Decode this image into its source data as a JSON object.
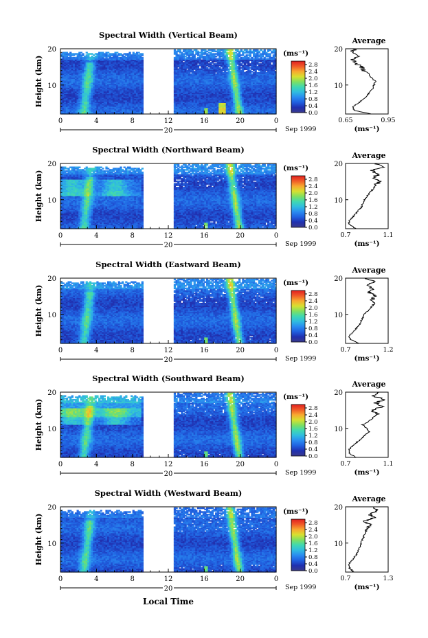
{
  "figure": {
    "xlabel": "Local Time",
    "time_ticks": [
      "0",
      "4",
      "8",
      "12",
      "16",
      "20",
      "0"
    ],
    "date_mark": "20",
    "date_label": "Sep 1999",
    "colorbar": {
      "unit_label": "(ms⁻¹)",
      "tick_labels": [
        "0.0",
        "0.4",
        "0.8",
        "1.2",
        "1.6",
        "2.0",
        "2.4",
        "2.8"
      ],
      "range": [
        0,
        3.0
      ],
      "colors": [
        "#3a3a8c",
        "#2030b0",
        "#2060e0",
        "#2a8cf0",
        "#30bce0",
        "#40d8b0",
        "#80e060",
        "#d8e030",
        "#f8a830",
        "#f05a28",
        "#e02020"
      ]
    },
    "avg_title": "Average",
    "avg_xlabel": "(ms⁻¹)",
    "avg_y_ticks": [
      "10",
      "20"
    ],
    "height_label": "Height (km)",
    "height_ticks": [
      "10",
      "20"
    ]
  },
  "chart_data": [
    {
      "type": "heatmap",
      "title": "Spectral Width (Vertical Beam)",
      "xlabel": "Local Time",
      "ylabel": "Height (km)",
      "xlim": [
        0,
        24
      ],
      "ylim": [
        2,
        20
      ],
      "data_gap_hours": [
        9.2,
        12.5
      ],
      "avg_profile": {
        "xlabel": "(ms⁻¹)",
        "xlim": [
          0.65,
          0.95
        ],
        "xticks": [
          "0.65",
          "0.95"
        ],
        "heights": [
          2,
          3,
          4,
          5,
          6,
          7,
          8,
          9,
          10,
          11,
          12,
          13,
          14,
          15,
          16,
          17,
          18,
          19,
          20
        ],
        "values": [
          0.83,
          0.71,
          0.7,
          0.74,
          0.77,
          0.8,
          0.82,
          0.84,
          0.85,
          0.86,
          0.83,
          0.82,
          0.78,
          0.76,
          0.72,
          0.7,
          0.74,
          0.69,
          0.72
        ]
      }
    },
    {
      "type": "heatmap",
      "title": "Spectral Width (Northward Beam)",
      "xlabel": "Local Time",
      "ylabel": "Height (km)",
      "xlim": [
        0,
        24
      ],
      "ylim": [
        2,
        20
      ],
      "data_gap_hours": [
        9.2,
        12.5
      ],
      "avg_profile": {
        "xlabel": "(ms⁻¹)",
        "xlim": [
          0.7,
          1.1
        ],
        "xticks": [
          "0.7",
          "1.1"
        ],
        "heights": [
          2,
          3,
          4,
          5,
          6,
          7,
          8,
          9,
          10,
          11,
          12,
          13,
          14,
          15,
          16,
          17,
          18,
          19,
          20
        ],
        "values": [
          0.8,
          0.74,
          0.73,
          0.76,
          0.79,
          0.82,
          0.85,
          0.86,
          0.88,
          0.9,
          0.93,
          0.96,
          0.98,
          1.02,
          0.96,
          1.0,
          0.95,
          1.05,
          0.98
        ]
      }
    },
    {
      "type": "heatmap",
      "title": "Spectral Width (Eastward Beam)",
      "xlabel": "Local Time",
      "ylabel": "Height (km)",
      "xlim": [
        0,
        24
      ],
      "ylim": [
        2,
        20
      ],
      "data_gap_hours": [
        9.2,
        12.5
      ],
      "avg_profile": {
        "xlabel": "(ms⁻¹)",
        "xlim": [
          0.7,
          1.2
        ],
        "xticks": [
          "0.7",
          "1.2"
        ],
        "heights": [
          2,
          3,
          4,
          5,
          6,
          7,
          8,
          9,
          10,
          11,
          12,
          13,
          14,
          15,
          16,
          17,
          18,
          19,
          20
        ],
        "values": [
          0.86,
          0.76,
          0.74,
          0.78,
          0.82,
          0.86,
          0.88,
          0.9,
          0.92,
          0.96,
          1.0,
          1.04,
          1.0,
          1.06,
          0.98,
          1.02,
          0.94,
          1.06,
          0.92
        ]
      }
    },
    {
      "type": "heatmap",
      "title": "Spectral Width (Southward Beam)",
      "xlabel": "Local Time",
      "ylabel": "Height (km)",
      "xlim": [
        0,
        24
      ],
      "ylim": [
        2,
        20
      ],
      "data_gap_hours": [
        9.2,
        12.5
      ],
      "avg_profile": {
        "xlabel": "(ms⁻¹)",
        "xlim": [
          0.7,
          1.1
        ],
        "xticks": [
          "0.7",
          "1.1"
        ],
        "heights": [
          2,
          3,
          4,
          5,
          6,
          7,
          8,
          9,
          10,
          11,
          12,
          13,
          14,
          15,
          16,
          17,
          18,
          19,
          20
        ],
        "values": [
          0.8,
          0.74,
          0.73,
          0.76,
          0.8,
          0.84,
          0.88,
          0.92,
          0.9,
          0.86,
          0.92,
          0.96,
          1.0,
          0.94,
          1.04,
          0.98,
          1.06,
          0.96,
          1.02
        ]
      }
    },
    {
      "type": "heatmap",
      "title": "Spectral Width (Westward Beam)",
      "xlabel": "Local Time",
      "ylabel": "Height (km)",
      "xlim": [
        0,
        24
      ],
      "ylim": [
        2,
        20
      ],
      "data_gap_hours": [
        9.2,
        12.5
      ],
      "avg_profile": {
        "xlabel": "(ms⁻¹)",
        "xlim": [
          0.7,
          1.3
        ],
        "xticks": [
          "0.7",
          "1.3"
        ],
        "heights": [
          2,
          3,
          4,
          5,
          6,
          7,
          8,
          9,
          10,
          11,
          12,
          13,
          14,
          15,
          16,
          17,
          18,
          19,
          20
        ],
        "values": [
          0.82,
          0.76,
          0.74,
          0.78,
          0.82,
          0.86,
          0.88,
          0.9,
          0.92,
          0.94,
          0.96,
          0.98,
          1.0,
          1.06,
          0.96,
          1.1,
          1.04,
          1.16,
          1.1
        ]
      }
    }
  ]
}
